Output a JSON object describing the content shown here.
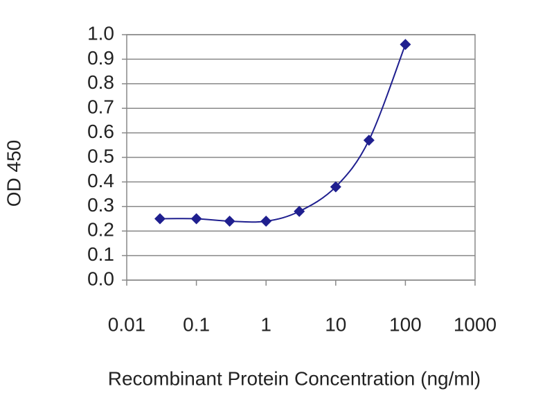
{
  "chart_data": {
    "type": "line",
    "x_label": "Recombinant Protein Concentration (ng/ml)",
    "y_label": "OD 450",
    "x": [
      0.03,
      0.1,
      0.3,
      1,
      3,
      10,
      30,
      100
    ],
    "values": [
      0.25,
      0.25,
      0.24,
      0.24,
      0.28,
      0.38,
      0.57,
      0.96
    ],
    "color": "#1f1f8f",
    "xscale": "log",
    "xlim": [
      0.01,
      1000
    ],
    "xticks": [
      0.01,
      0.1,
      1,
      10,
      100,
      1000
    ],
    "ylim": [
      0,
      1
    ],
    "yticks": [
      {
        "value": 0,
        "label": "0.0"
      },
      0.1,
      0.2,
      0.3,
      0.4,
      0.5,
      0.6,
      0.7,
      0.8,
      0.9,
      {
        "value": 1,
        "label": "1.0"
      }
    ],
    "grid": true
  }
}
